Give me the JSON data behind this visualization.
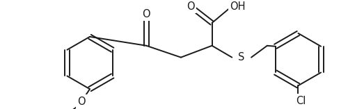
{
  "bg_color": "#ffffff",
  "line_color": "#1a1a1a",
  "line_width": 1.4,
  "font_size": 10.5,
  "figsize": [
    5.0,
    1.57
  ],
  "dpi": 100,
  "xlim": [
    0,
    500
  ],
  "ylim": [
    0,
    157
  ]
}
